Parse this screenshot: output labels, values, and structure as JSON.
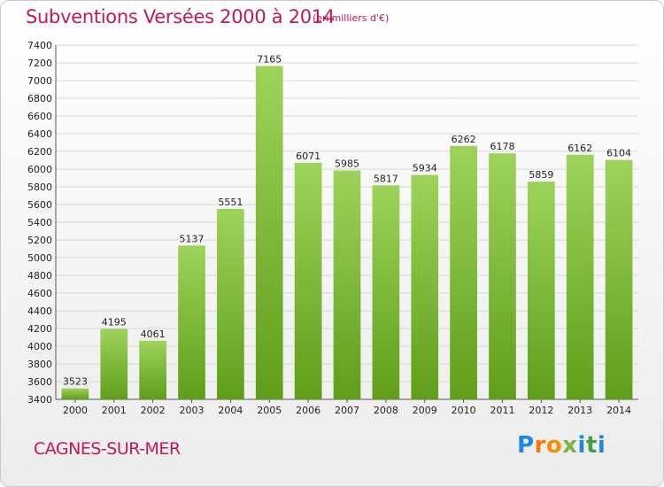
{
  "header": {
    "title": "Subventions Versées 2000 à 2014",
    "unit_note": "(en milliers d'€)"
  },
  "footer": {
    "commune": "CAGNES-SUR-MER",
    "logo_text": "Proxiti",
    "logo_colors": [
      "#1e88e5",
      "#f57c00",
      "#fb8c00",
      "#7cb342",
      "#1e88e5",
      "#43a047",
      "#1e88e5"
    ]
  },
  "colors": {
    "title": "#c2185b",
    "bar_light": "#9ed35a",
    "bar_dark": "#5f9e1a",
    "grid": "#d6d6d6",
    "background_top": "#ffffff",
    "background_bottom": "#ececec"
  },
  "chart_data": {
    "type": "bar",
    "title": "Subventions Versées 2000 à 2014",
    "subtitle": "(en milliers d'€)",
    "xlabel": "",
    "ylabel": "",
    "categories": [
      "2000",
      "2001",
      "2002",
      "2003",
      "2004",
      "2005",
      "2006",
      "2007",
      "2008",
      "2009",
      "2010",
      "2011",
      "2012",
      "2013",
      "2014"
    ],
    "values": [
      3523,
      4195,
      4061,
      5137,
      5551,
      7165,
      6071,
      5985,
      5817,
      5934,
      6262,
      6178,
      5859,
      6162,
      6104
    ],
    "ylim": [
      3400,
      7400
    ],
    "yticks": [
      3400,
      3600,
      3800,
      4000,
      4200,
      4400,
      4600,
      4800,
      5000,
      5200,
      5400,
      5600,
      5800,
      6000,
      6200,
      6400,
      6600,
      6800,
      7000,
      7200,
      7400
    ],
    "grid": true,
    "legend": "none"
  }
}
